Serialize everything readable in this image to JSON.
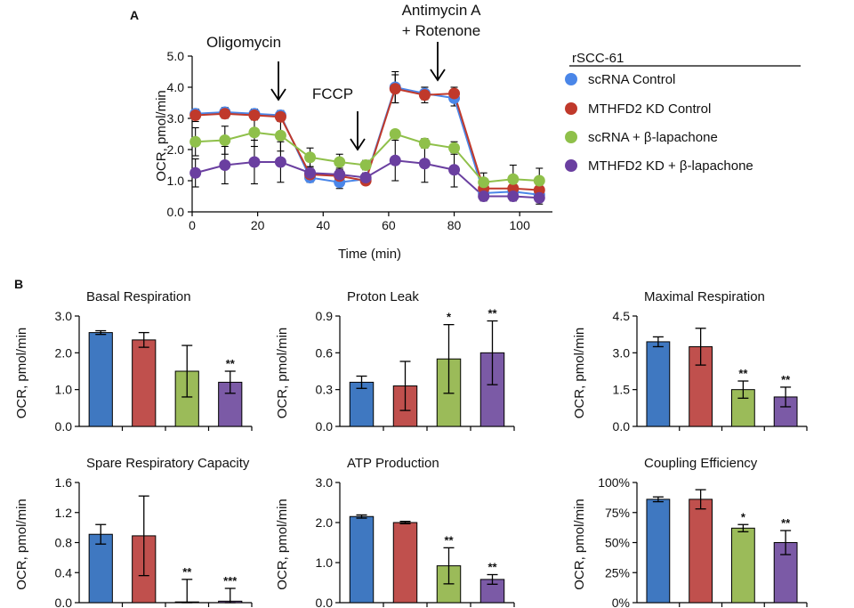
{
  "colors": {
    "scrna_control": "#3f78c1",
    "mthfd2_control": "#c0504d",
    "scrna_lapachone": "#9bbb59",
    "mthfd2_lapachone": "#7b5aa6",
    "line_scrna_control": "#4a86e8",
    "line_mthfd2_control": "#c0392b",
    "line_scrna_lapachone": "#8fc04a",
    "line_mthfd2_lapachone": "#6a3fa0",
    "axis": "#000000"
  },
  "chart_data": [
    {
      "id": "A",
      "type": "line",
      "panel_label": "A",
      "title": "",
      "xlabel": "Time (min)",
      "ylabel": "OCR, pmol/min",
      "xlim": [
        0,
        110
      ],
      "ylim": [
        0,
        5
      ],
      "xticks": [
        0,
        20,
        40,
        60,
        80,
        100
      ],
      "xtick_labels": [
        "0",
        "20",
        "40",
        "60",
        "80",
        "100"
      ],
      "yticks": [
        0,
        1,
        2,
        3,
        4,
        5
      ],
      "ytick_labels": [
        "0.0",
        "1.0",
        "2.0",
        "3.0",
        "4.0",
        "5.0"
      ],
      "x": [
        1,
        10,
        19,
        27,
        36,
        45,
        53,
        62,
        71,
        80,
        89,
        98,
        106
      ],
      "series": [
        {
          "name": "scRNA Control",
          "color_key": "line_scrna_control",
          "values": [
            3.15,
            3.2,
            3.15,
            3.1,
            1.1,
            0.95,
            1.05,
            4.0,
            3.8,
            3.65,
            0.6,
            0.65,
            0.55
          ],
          "errors": [
            0.15,
            0.15,
            0.15,
            0.15,
            0.15,
            0.2,
            0.15,
            0.5,
            0.2,
            0.25,
            0.2,
            0.2,
            0.2
          ]
        },
        {
          "name": "MTHFD2 KD Control",
          "color_key": "line_mthfd2_control",
          "values": [
            3.1,
            3.15,
            3.1,
            3.05,
            1.2,
            1.15,
            1.0,
            3.95,
            3.75,
            3.8,
            0.75,
            0.75,
            0.7
          ],
          "errors": [
            0.2,
            0.15,
            0.15,
            0.15,
            0.2,
            0.2,
            0.1,
            0.45,
            0.25,
            0.2,
            0.25,
            0.2,
            0.25
          ]
        },
        {
          "name": "scRNA + β-lapachone",
          "color_key": "line_scrna_lapachone",
          "values": [
            2.25,
            2.3,
            2.55,
            2.45,
            1.75,
            1.6,
            1.5,
            2.5,
            2.2,
            2.05,
            0.95,
            1.05,
            1.0
          ],
          "errors": [
            0.45,
            0.45,
            0.45,
            0.5,
            0.3,
            0.25,
            0.15,
            0.1,
            0.15,
            0.2,
            0.3,
            0.45,
            0.4
          ]
        },
        {
          "name": "MTHFD2 KD + β-lapachone",
          "color_key": "line_mthfd2_lapachone",
          "values": [
            1.25,
            1.5,
            1.6,
            1.6,
            1.25,
            1.2,
            1.1,
            1.65,
            1.55,
            1.35,
            0.5,
            0.5,
            0.45
          ],
          "errors": [
            0.45,
            0.6,
            0.7,
            0.65,
            0.2,
            0.2,
            0.15,
            0.65,
            0.6,
            0.55,
            0.15,
            0.15,
            0.2
          ]
        }
      ],
      "annotations": [
        {
          "label": "Oligomycin",
          "x": 24
        },
        {
          "label": "FCCP",
          "x": 53
        },
        {
          "label": "Antimycin A\n+ Rotenone",
          "x": 78
        }
      ],
      "legend": {
        "title": "rSCC-61",
        "entries": [
          "scRNA Control",
          "MTHFD2 KD Control",
          "scRNA + β-lapachone",
          "MTHFD2 KD + β-lapachone"
        ],
        "placement": "right"
      }
    },
    {
      "id": "B1",
      "type": "bar",
      "panel_label": "B",
      "title": "Basal Respiration",
      "ylabel": "OCR, pmol/min",
      "ylim": [
        0,
        3
      ],
      "yticks": [
        0,
        1,
        2,
        3
      ],
      "ytick_labels": [
        "0.0",
        "1.0",
        "2.0",
        "3.0"
      ],
      "values": [
        2.55,
        2.35,
        1.5,
        1.2
      ],
      "errors": [
        0.05,
        0.2,
        0.7,
        0.3
      ],
      "significance": [
        "",
        "",
        "",
        "**"
      ]
    },
    {
      "id": "B2",
      "type": "bar",
      "title": "Proton Leak",
      "ylabel": "OCR, pmol/min",
      "ylim": [
        0,
        0.9
      ],
      "yticks": [
        0,
        0.3,
        0.6,
        0.9
      ],
      "ytick_labels": [
        "0.0",
        "0.3",
        "0.6",
        "0.9"
      ],
      "values": [
        0.36,
        0.33,
        0.55,
        0.6
      ],
      "errors": [
        0.05,
        0.2,
        0.28,
        0.26
      ],
      "significance": [
        "",
        "",
        "*",
        "**"
      ]
    },
    {
      "id": "B3",
      "type": "bar",
      "title": "Maximal Respiration",
      "ylabel": "OCR, pmol/min",
      "ylim": [
        0,
        4.5
      ],
      "yticks": [
        0,
        1.5,
        3.0,
        4.5
      ],
      "ytick_labels": [
        "0.0",
        "1.5",
        "3.0",
        "4.5"
      ],
      "values": [
        3.45,
        3.25,
        1.5,
        1.2
      ],
      "errors": [
        0.2,
        0.75,
        0.35,
        0.4
      ],
      "significance": [
        "",
        "",
        "**",
        "**"
      ]
    },
    {
      "id": "B4",
      "type": "bar",
      "title": "Spare Respiratory Capacity",
      "ylabel": "OCR, pmol/min",
      "ylim": [
        0,
        1.6
      ],
      "yticks": [
        0,
        0.4,
        0.8,
        1.2,
        1.6
      ],
      "ytick_labels": [
        "0.0",
        "0.4",
        "0.8",
        "1.2",
        "1.6"
      ],
      "values": [
        0.91,
        0.89,
        0.01,
        0.02
      ],
      "errors": [
        0.13,
        0.53,
        0.3,
        0.17
      ],
      "significance": [
        "",
        "",
        "**",
        "***"
      ]
    },
    {
      "id": "B5",
      "type": "bar",
      "title": "ATP Production",
      "ylabel": "OCR, pmol/min",
      "ylim": [
        0,
        3
      ],
      "yticks": [
        0,
        1,
        2,
        3
      ],
      "ytick_labels": [
        "0.0",
        "1.0",
        "2.0",
        "3.0"
      ],
      "values": [
        2.15,
        2.0,
        0.92,
        0.58
      ],
      "errors": [
        0.04,
        0.03,
        0.45,
        0.12
      ],
      "significance": [
        "",
        "",
        "**",
        "**"
      ]
    },
    {
      "id": "B6",
      "type": "bar",
      "title": "Coupling Efficiency",
      "ylabel": "OCR, pmol/min",
      "ylim": [
        0,
        100
      ],
      "yticks": [
        0,
        25,
        50,
        75,
        100
      ],
      "ytick_labels": [
        "0%",
        "25%",
        "50%",
        "75%",
        "100%"
      ],
      "values": [
        86,
        86,
        62,
        50
      ],
      "errors": [
        2,
        8,
        3,
        10
      ],
      "significance": [
        "",
        "",
        "*",
        "**"
      ]
    }
  ]
}
